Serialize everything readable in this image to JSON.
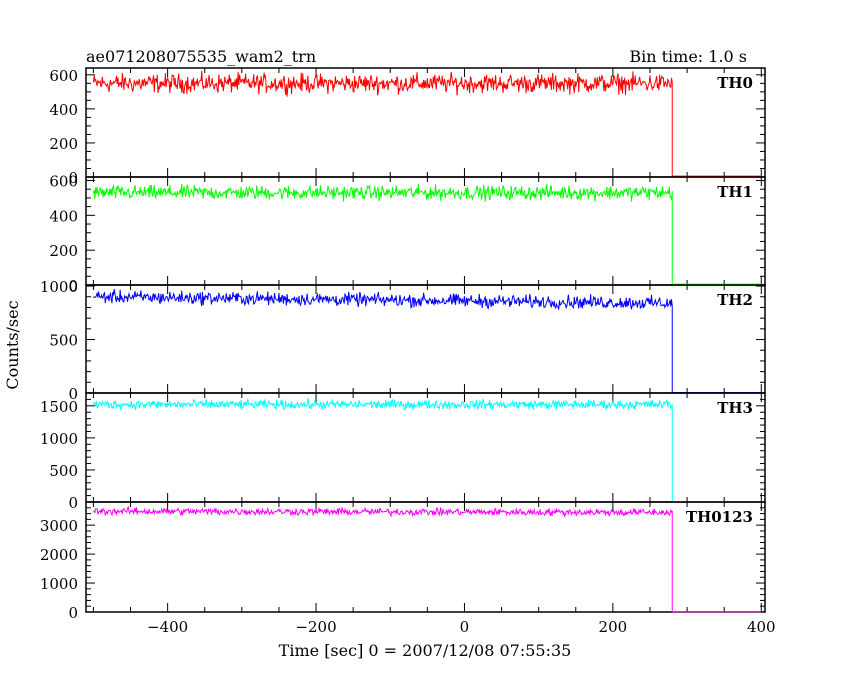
{
  "header": {
    "title": "ae071208075535_wam2_trn",
    "bin_time": "Bin time: 1.0 s"
  },
  "axes": {
    "ylabel": "Counts/sec",
    "xlabel": "Time [sec] 0 = 2007/12/08 07:55:35"
  },
  "chart_data": {
    "type": "line",
    "title": "ae071208075535_wam2_trn",
    "xlabel": "Time [sec] 0 = 2007/12/08 07:55:35",
    "ylabel": "Counts/sec",
    "xlim": [
      -510,
      405
    ],
    "x_ticks": [
      -400,
      -200,
      0,
      200,
      400
    ],
    "x_tick_labels": [
      "−400",
      "−200",
      "0",
      "200",
      "400"
    ],
    "x_step_end": 280,
    "grid": false,
    "panels": [
      {
        "name": "TH0",
        "color": "#ff0000",
        "ylim": [
          0,
          640
        ],
        "ticks": [
          0,
          200,
          400,
          600
        ],
        "minor": 50,
        "level": 550,
        "noise": 55,
        "trend": 0,
        "tail": 5
      },
      {
        "name": "TH1",
        "color": "#00ff00",
        "ylim": [
          0,
          620
        ],
        "ticks": [
          0,
          200,
          400,
          600
        ],
        "minor": 50,
        "level": 530,
        "noise": 40,
        "trend": 0,
        "tail": 5
      },
      {
        "name": "TH2",
        "color": "#0000ff",
        "ylim": [
          0,
          1010
        ],
        "ticks": [
          0,
          500,
          1000
        ],
        "minor": 100,
        "level": 900,
        "noise": 60,
        "trend": -60,
        "tail": 5
      },
      {
        "name": "TH3",
        "color": "#00ffff",
        "ylim": [
          0,
          1700
        ],
        "ticks": [
          0,
          500,
          1000,
          1500
        ],
        "minor": 100,
        "level": 1520,
        "noise": 70,
        "trend": 0,
        "tail": 5
      },
      {
        "name": "TH0123",
        "color": "#ff00ff",
        "ylim": [
          0,
          3800
        ],
        "ticks": [
          0,
          1000,
          2000,
          3000
        ],
        "minor": 200,
        "level": 3480,
        "noise": 120,
        "trend": -40,
        "tail": 5
      }
    ]
  }
}
